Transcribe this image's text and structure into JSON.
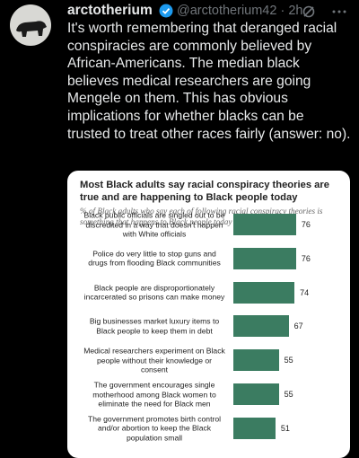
{
  "header": {
    "name": "arctotherium",
    "handle": "@arctotherium42",
    "time": "2h"
  },
  "tweet": {
    "lines": [
      "It's worth remembering that deranged racial",
      "conspiracies are commonly believed by",
      "African-Americans. The median black",
      "believes medical researchers are going",
      "Mengele on them. This has obvious",
      "implications for whether blacks can be",
      "trusted to treat other races fairly (answer: no)."
    ]
  },
  "chart_data": {
    "type": "bar",
    "orientation": "horizontal",
    "title": "Most Black adults say racial conspiracy theories are true and are happening to Black people today",
    "subtitle": "% of Black adults who say each of following racial conspiracy theories is something that happens to Black people today",
    "categories": [
      "Black public officials are singled out to be discredited in a way that doesn't happen with White officials",
      "Police do very little to stop guns and drugs from flooding Black communities",
      "Black people are disproportionately incarcerated so prisons can make money",
      "Big businesses market luxury items to Black people to keep them in debt",
      "Medical researchers experiment on Black people without their knowledge or consent",
      "The government encourages single motherhood among Black women to eliminate the need for Black men",
      "The government promotes birth control and/or abortion to keep the Black population small"
    ],
    "values": [
      76,
      76,
      74,
      67,
      55,
      55,
      51
    ],
    "color": "#3b7c61"
  }
}
